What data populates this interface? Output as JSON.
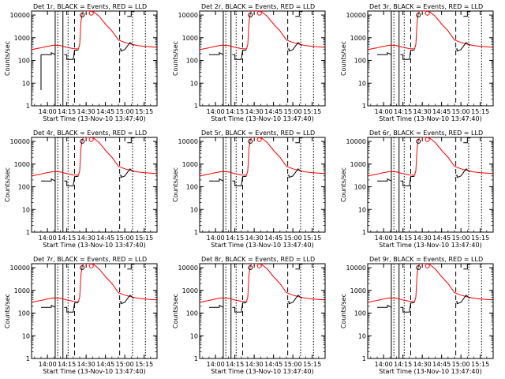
{
  "colors": {
    "background": "#ffffff",
    "events": "#000000",
    "lld": "#ff0000",
    "axes": "#000000"
  },
  "chart_data": [
    {
      "type": "line",
      "title": "Det 1r, BLACK = Events, RED = LLD",
      "xlabel": "Start Time (13-Nov-10 13:47:40)",
      "ylabel": "Counts/sec"
    },
    {
      "type": "line",
      "title": "Det 2r, BLACK = Events, RED = LLD",
      "xlabel": "Start Time (13-Nov-10 13:47:40)",
      "ylabel": "Counts/sec"
    },
    {
      "type": "line",
      "title": "Det 3r, BLACK = Events, RED = LLD",
      "xlabel": "Start Time (13-Nov-10 13:47:40)",
      "ylabel": "Counts/sec"
    },
    {
      "type": "line",
      "title": "Det 4r, BLACK = Events, RED = LLD",
      "xlabel": "Start Time (13-Nov-10 13:47:40)",
      "ylabel": "Counts/sec"
    },
    {
      "type": "line",
      "title": "Det 5r, BLACK = Events, RED = LLD",
      "xlabel": "Start Time (13-Nov-10 13:47:40)",
      "ylabel": "Counts/sec"
    },
    {
      "type": "line",
      "title": "Det 6r, BLACK = Events, RED = LLD",
      "xlabel": "Start Time (13-Nov-10 13:47:40)",
      "ylabel": "Counts/sec"
    },
    {
      "type": "line",
      "title": "Det 7r, BLACK = Events, RED = LLD",
      "xlabel": "Start Time (13-Nov-10 13:47:40)",
      "ylabel": "Counts/sec"
    },
    {
      "type": "line",
      "title": "Det 8r, BLACK = Events, RED = LLD",
      "xlabel": "Start Time (13-Nov-10 13:47:40)",
      "ylabel": "Counts/sec"
    },
    {
      "type": "line",
      "title": "Det 9r, BLACK = Events, RED = LLD",
      "xlabel": "Start Time (13-Nov-10 13:47:40)",
      "ylabel": "Counts/sec"
    }
  ],
  "shared": {
    "xlim": [
      "13:47:40",
      "15:25"
    ],
    "ylim": [
      1,
      15000
    ],
    "yscale": "log",
    "x_ticks": [
      "14:00",
      "14:15",
      "14:30",
      "14:45",
      "15:00",
      "15:15"
    ],
    "y_ticks": [
      1,
      10,
      100,
      1000,
      10000
    ],
    "y_tick_labels": [
      "1",
      "10",
      "100",
      "1000",
      "10000"
    ],
    "vlines": [
      {
        "time": "14:06",
        "style": "solid"
      },
      {
        "time": "14:08",
        "style": "dotted"
      },
      {
        "time": "14:12",
        "style": "solid"
      },
      {
        "time": "14:16",
        "style": "dotted"
      },
      {
        "time": "14:21",
        "style": "dashed"
      },
      {
        "time": "14:56",
        "style": "dashed"
      },
      {
        "time": "15:06",
        "style": "dotted"
      },
      {
        "time": "15:16",
        "style": "dotted"
      }
    ],
    "lld_series": {
      "name": "LLD",
      "color": "#ff0000",
      "x": [
        "13:47:40",
        "13:55",
        "14:00",
        "14:05",
        "14:10",
        "14:15",
        "14:20",
        "14:24",
        "14:25",
        "14:26",
        "14:27",
        "14:28",
        "14:32",
        "14:35",
        "14:40",
        "14:45",
        "14:50",
        "14:55",
        "15:00",
        "15:05",
        "15:10",
        "15:15",
        "15:20",
        "15:25"
      ],
      "values": [
        300,
        360,
        420,
        470,
        450,
        380,
        330,
        320,
        500,
        5000,
        12000,
        15000,
        15000,
        15000,
        9000,
        4000,
        2000,
        800,
        620,
        520,
        450,
        420,
        400,
        380
      ]
    },
    "events_series": {
      "name": "Events",
      "color": "#000000",
      "segments": [
        {
          "x": [
            "13:55",
            "14:03",
            "14:03",
            "14:06"
          ],
          "values": [
            180,
            180,
            220,
            180
          ]
        },
        {
          "x": [
            "14:13",
            "14:15",
            "14:15",
            "14:20",
            "14:21",
            "14:24"
          ],
          "values": [
            180,
            180,
            110,
            110,
            280,
            290
          ]
        },
        {
          "x": [
            "14:56",
            "14:57",
            "14:57",
            "15:00",
            "15:04",
            "15:07"
          ],
          "values": [
            320,
            320,
            260,
            300,
            620,
            450
          ]
        }
      ]
    },
    "markers": [
      {
        "x": "14:27",
        "y": 10000,
        "shape": "circle",
        "color": "#000000"
      },
      {
        "x": "14:34",
        "y": 12000,
        "shape": "circle",
        "color": "#ff0000"
      },
      {
        "x": "15:05",
        "y": 12000,
        "shape": "step",
        "color": "#000000"
      }
    ],
    "event_spikes": [
      {
        "panel": 1,
        "x": "13:55",
        "from": 5,
        "to": 180
      }
    ]
  }
}
